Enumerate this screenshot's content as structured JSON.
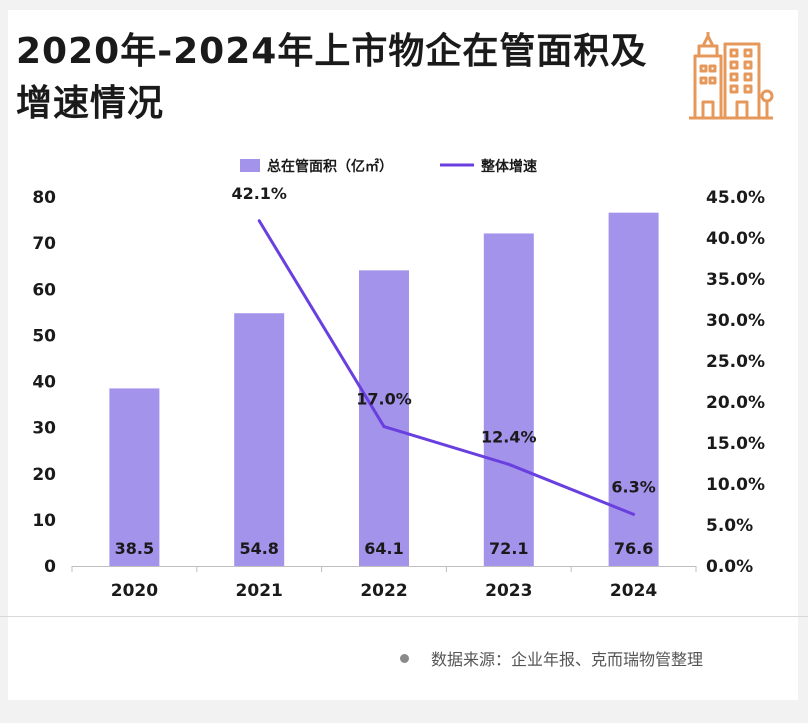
{
  "title": "2020年-2024年上市物企在管面积及增速情况",
  "source": "数据来源：企业年报、克而瑞物管整理",
  "logo_icon": "building-icon",
  "colors": {
    "bar": "#a393eb",
    "line": "#6a3fe0",
    "logo": "#e5985a"
  },
  "chart_data": {
    "type": "bar",
    "categories": [
      "2020",
      "2021",
      "2022",
      "2023",
      "2024"
    ],
    "series": [
      {
        "name": "总在管面积（亿㎡）",
        "type": "bar",
        "axis": "left",
        "values": [
          38.5,
          54.8,
          64.1,
          72.1,
          76.6
        ],
        "labels": [
          "38.5",
          "54.8",
          "64.1",
          "72.1",
          "76.6"
        ]
      },
      {
        "name": "整体增速",
        "type": "line",
        "axis": "right",
        "values": [
          null,
          42.1,
          17.0,
          12.4,
          6.3
        ],
        "labels": [
          "",
          "42.1%",
          "17.0%",
          "12.4%",
          "6.3%"
        ]
      }
    ],
    "y_left": {
      "min": 0,
      "max": 80,
      "ticks": [
        "0",
        "10",
        "20",
        "30",
        "40",
        "50",
        "60",
        "70",
        "80"
      ]
    },
    "y_right": {
      "min": 0,
      "max": 45,
      "ticks": [
        "0.0%",
        "5.0%",
        "10.0%",
        "15.0%",
        "20.0%",
        "25.0%",
        "30.0%",
        "35.0%",
        "40.0%",
        "45.0%"
      ]
    },
    "legend_position": "top",
    "grid": false
  }
}
